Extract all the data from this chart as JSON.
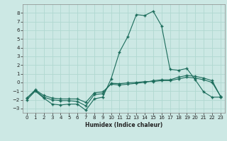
{
  "xlabel": "Humidex (Indice chaleur)",
  "ylabel": "",
  "bg_color": "#cce8e4",
  "grid_color": "#b0d8d0",
  "line_color": "#1a6b5a",
  "xlim": [
    -0.5,
    23.5
  ],
  "ylim": [
    -3.5,
    9.0
  ],
  "yticks": [
    -3,
    -2,
    -1,
    0,
    1,
    2,
    3,
    4,
    5,
    6,
    7,
    8
  ],
  "xticks": [
    0,
    1,
    2,
    3,
    4,
    5,
    6,
    7,
    8,
    9,
    10,
    11,
    12,
    13,
    14,
    15,
    16,
    17,
    18,
    19,
    20,
    21,
    22,
    23
  ],
  "line1_x": [
    0,
    1,
    2,
    3,
    4,
    5,
    6,
    7,
    8,
    9,
    10,
    11,
    12,
    13,
    14,
    15,
    16,
    17,
    18,
    19,
    20,
    21,
    22,
    23
  ],
  "line1_y": [
    -2.0,
    -1.0,
    -1.8,
    -2.5,
    -2.6,
    -2.5,
    -2.5,
    -3.2,
    -1.9,
    -1.7,
    0.4,
    3.5,
    5.3,
    7.8,
    7.7,
    8.2,
    6.5,
    1.5,
    1.4,
    1.6,
    0.3,
    -1.1,
    -1.7,
    -1.7
  ],
  "line2_x": [
    0,
    1,
    2,
    3,
    4,
    5,
    6,
    7,
    8,
    9,
    10,
    11,
    12,
    13,
    14,
    15,
    16,
    17,
    18,
    19,
    20,
    21,
    22,
    23
  ],
  "line2_y": [
    -1.8,
    -0.9,
    -1.7,
    -2.0,
    -2.1,
    -2.1,
    -2.2,
    -2.7,
    -1.4,
    -1.3,
    -0.1,
    -0.15,
    -0.05,
    -0.0,
    0.1,
    0.1,
    0.2,
    0.2,
    0.4,
    0.6,
    0.5,
    0.3,
    0.0,
    -1.6
  ],
  "line3_x": [
    0,
    1,
    2,
    3,
    4,
    5,
    6,
    7,
    8,
    9,
    10,
    11,
    12,
    13,
    14,
    15,
    16,
    17,
    18,
    19,
    20,
    21,
    22,
    23
  ],
  "line3_y": [
    -1.8,
    -0.85,
    -1.5,
    -1.8,
    -1.9,
    -1.9,
    -1.9,
    -2.3,
    -1.2,
    -1.1,
    -0.2,
    -0.3,
    -0.2,
    -0.1,
    0.0,
    0.2,
    0.3,
    0.3,
    0.6,
    0.8,
    0.7,
    0.5,
    0.2,
    -1.6
  ]
}
